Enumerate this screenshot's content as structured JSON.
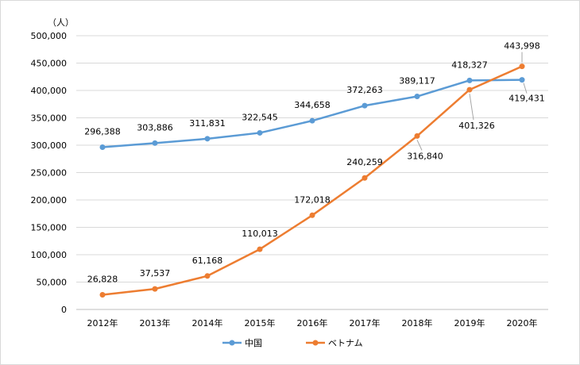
{
  "chart_data": {
    "type": "line",
    "unit_label": "（人）",
    "categories": [
      "2012年",
      "2013年",
      "2014年",
      "2015年",
      "2016年",
      "2017年",
      "2018年",
      "2019年",
      "2020年"
    ],
    "series": [
      {
        "name": "中国",
        "color": "#5b9bd5",
        "values": [
          296388,
          303886,
          311831,
          322545,
          344658,
          372263,
          389117,
          418327,
          419431
        ],
        "labels": [
          "296,388",
          "303,886",
          "311,831",
          "322,545",
          "344,658",
          "372,263",
          "389,117",
          "418,327",
          "419,431"
        ]
      },
      {
        "name": "ベトナム",
        "color": "#ed7d31",
        "values": [
          26828,
          37537,
          61168,
          110013,
          172018,
          240259,
          316840,
          401326,
          443998
        ],
        "labels": [
          "26,828",
          "37,537",
          "61,168",
          "110,013",
          "172,018",
          "240,259",
          "316,840",
          "401,326",
          "443,998"
        ]
      }
    ],
    "ylim": [
      0,
      500000
    ],
    "yticks": [
      0,
      50000,
      100000,
      150000,
      200000,
      250000,
      300000,
      350000,
      400000,
      450000,
      500000
    ],
    "ytick_labels": [
      "0",
      "50,000",
      "100,000",
      "150,000",
      "200,000",
      "250,000",
      "300,000",
      "350,000",
      "400,000",
      "450,000",
      "500,000"
    ],
    "grid": true,
    "legend_position": "bottom"
  }
}
